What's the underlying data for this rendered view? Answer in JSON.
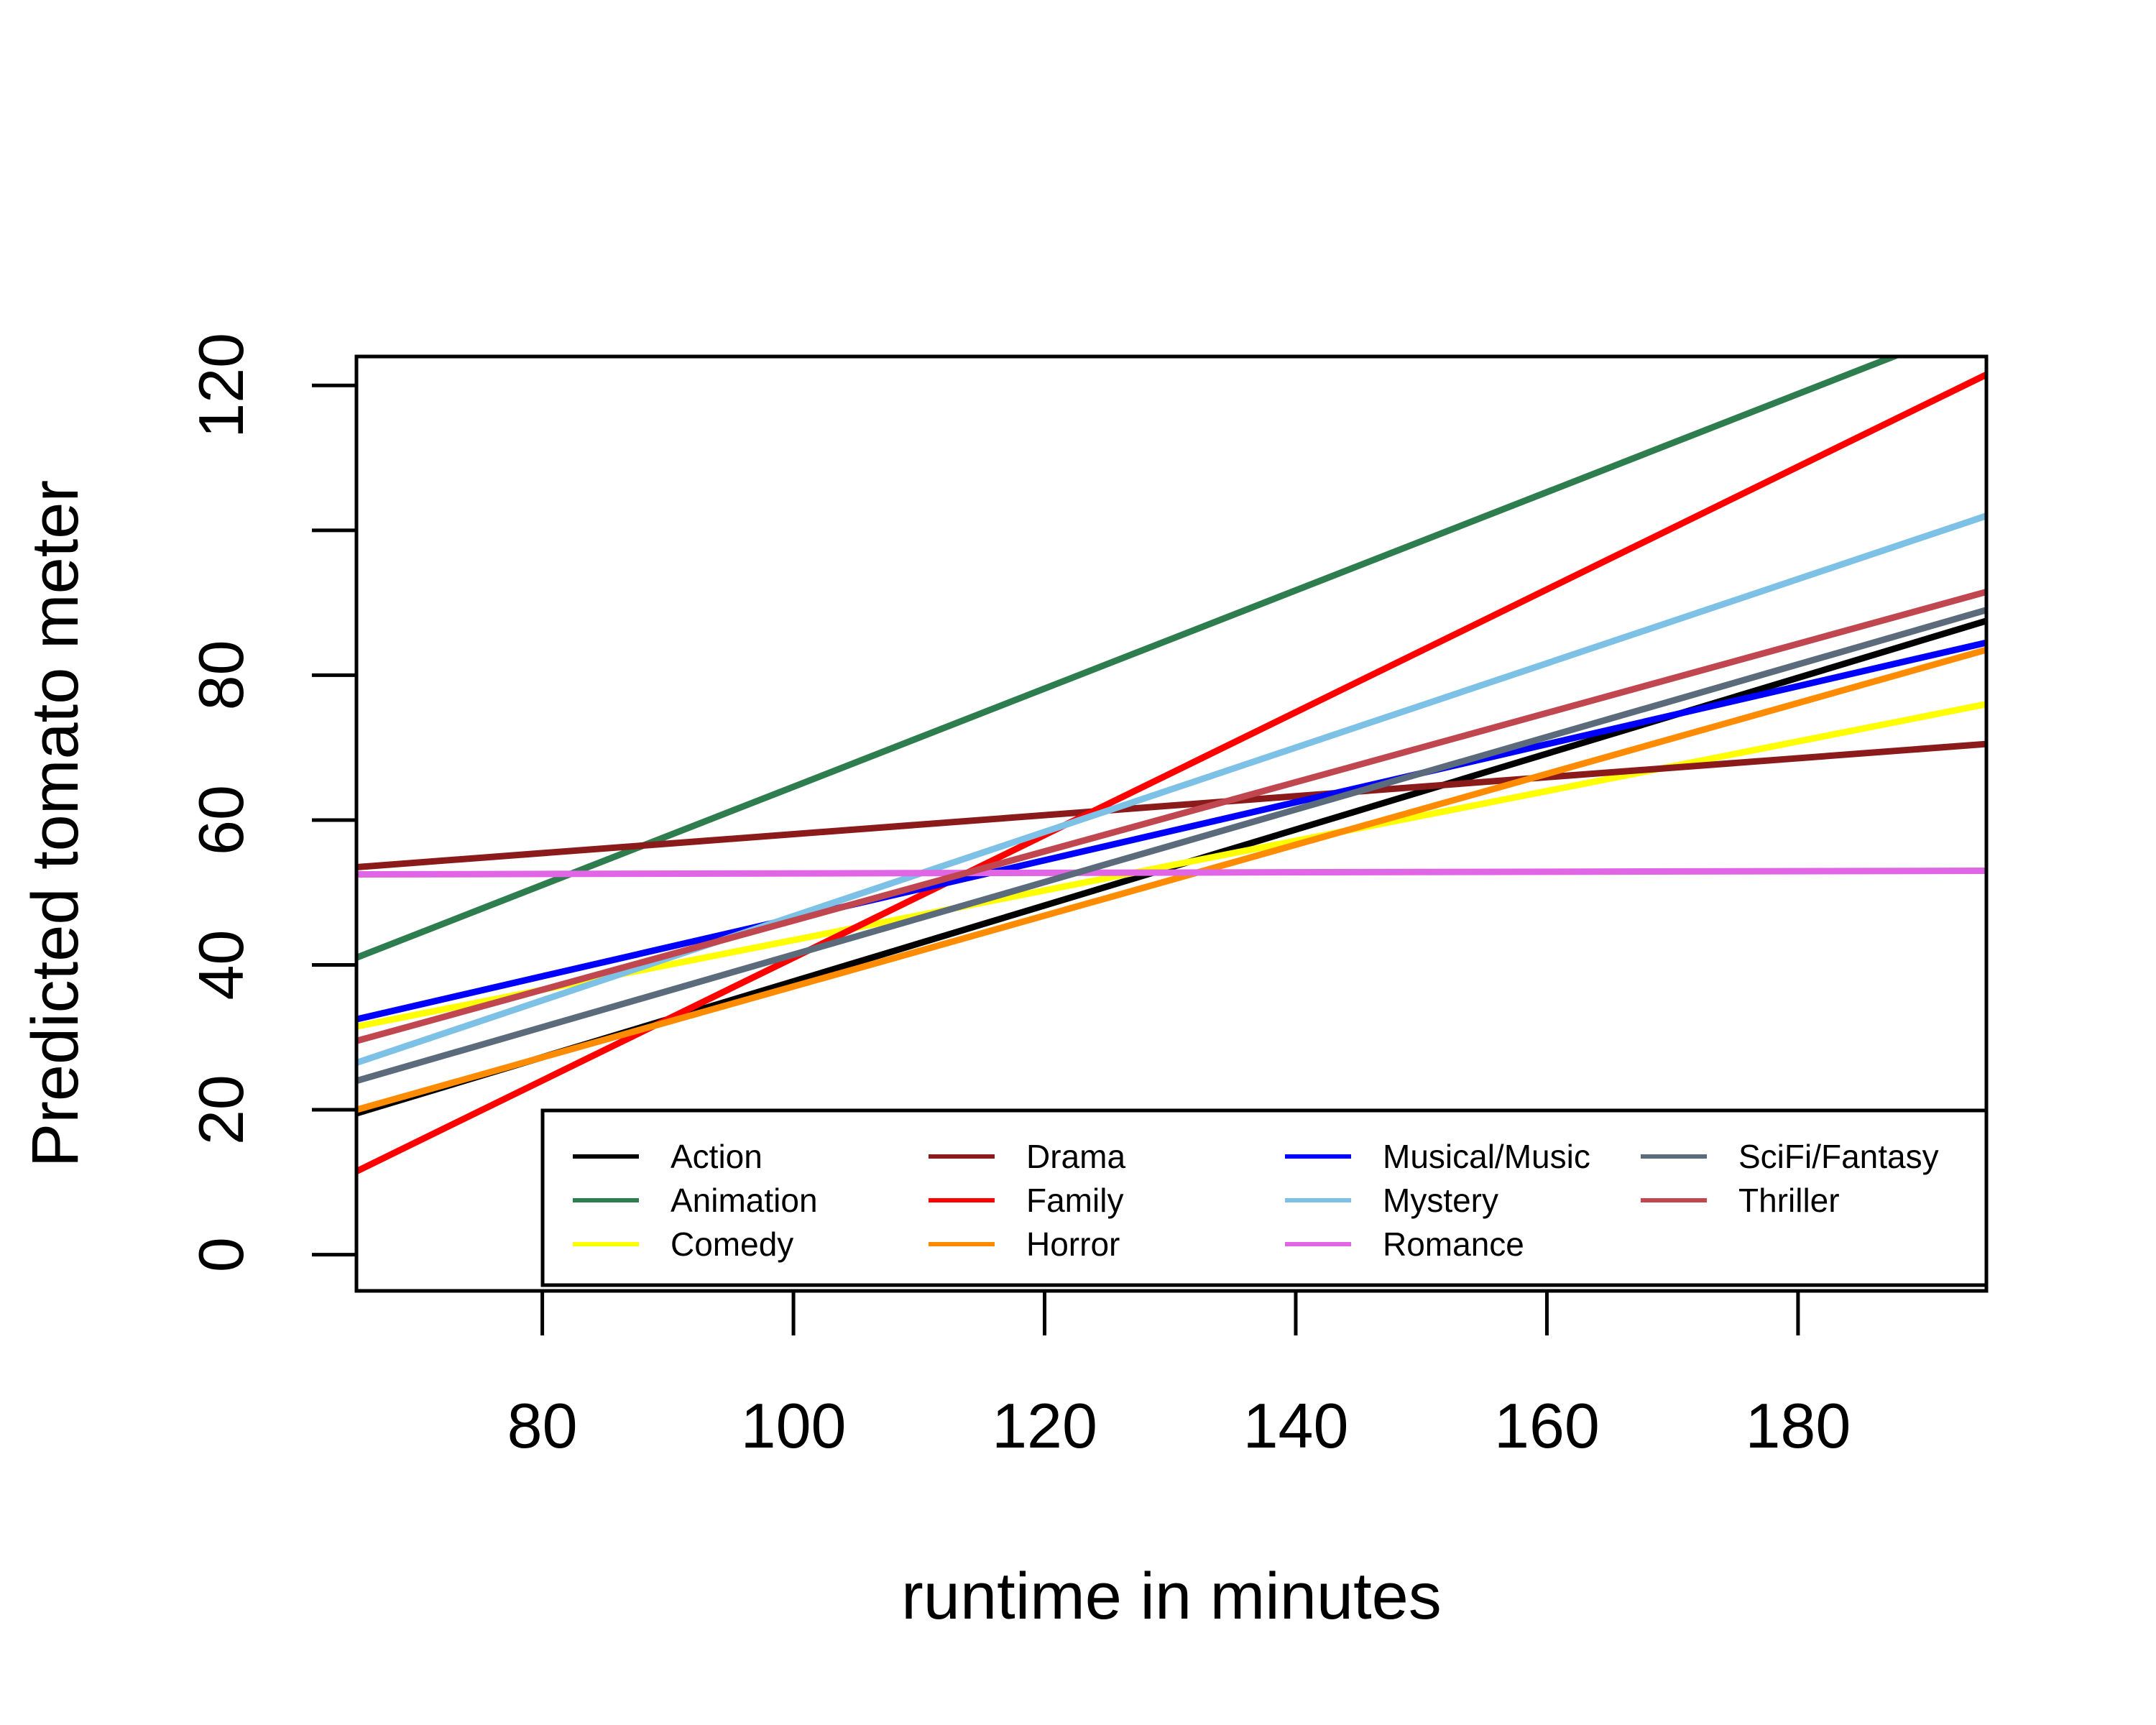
{
  "chart_data": {
    "type": "line",
    "title": "",
    "xlabel": "runtime in minutes",
    "ylabel": "Predicted tomato meter",
    "xlim": [
      65.2,
      195
    ],
    "ylim": [
      -5,
      124
    ],
    "x_ticks": [
      80,
      100,
      120,
      140,
      160,
      180
    ],
    "y_ticks": [
      0,
      20,
      40,
      60,
      80,
      100,
      120
    ],
    "y_tick_labels": [
      "0",
      "20",
      "40",
      "60",
      "80",
      "",
      "120"
    ],
    "grid": false,
    "legend": {
      "position": "bottom-right",
      "columns": 4
    },
    "series": [
      {
        "name": "Action",
        "color": "#000000",
        "x": [
          65.2,
          195
        ],
        "y": [
          19.5,
          87.5
        ]
      },
      {
        "name": "Animation",
        "color": "#2E7D4F",
        "x": [
          65.2,
          195
        ],
        "y": [
          41.0,
          129.0
        ]
      },
      {
        "name": "Comedy",
        "color": "#FFFF00",
        "x": [
          65.2,
          195
        ],
        "y": [
          31.5,
          76.0
        ]
      },
      {
        "name": "Drama",
        "color": "#8B1A1A",
        "x": [
          65.2,
          195
        ],
        "y": [
          53.5,
          70.5
        ]
      },
      {
        "name": "Family",
        "color": "#FF0000",
        "x": [
          65.2,
          195
        ],
        "y": [
          11.5,
          121.5
        ]
      },
      {
        "name": "Horror",
        "color": "#FF8C00",
        "x": [
          65.2,
          195
        ],
        "y": [
          20.0,
          83.5
        ]
      },
      {
        "name": "Musical/Music",
        "color": "#0000FF",
        "x": [
          65.2,
          195
        ],
        "y": [
          32.5,
          84.5
        ]
      },
      {
        "name": "Mystery",
        "color": "#7DC1E6",
        "x": [
          65.2,
          195
        ],
        "y": [
          26.5,
          102.0
        ]
      },
      {
        "name": "Romance",
        "color": "#E066E6",
        "x": [
          65.2,
          195
        ],
        "y": [
          52.5,
          53.0
        ]
      },
      {
        "name": "SciFi/Fantasy",
        "color": "#5B6B7B",
        "x": [
          65.2,
          195
        ],
        "y": [
          24.0,
          89.0
        ]
      },
      {
        "name": "Thriller",
        "color": "#C0474F",
        "x": [
          65.2,
          195
        ],
        "y": [
          29.5,
          91.5
        ]
      }
    ]
  }
}
